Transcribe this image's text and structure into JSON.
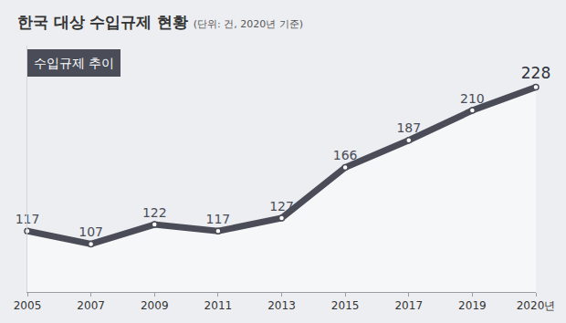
{
  "chart_data": {
    "type": "line",
    "title": "한국 대상 수입규제 현황",
    "subtitle": "(단위: 건, 2020년 기준)",
    "annotations": [
      "수입규제 추이"
    ],
    "categories": [
      "2005",
      "2007",
      "2009",
      "2011",
      "2013",
      "2015",
      "2017",
      "2019",
      "2020년"
    ],
    "values": [
      117,
      107,
      122,
      117,
      127,
      166,
      187,
      210,
      228
    ],
    "color": "#4a4d58",
    "marker": "circle",
    "ylim": [
      70,
      260
    ],
    "yticks": [],
    "tick_labels": "x",
    "data_labels": true,
    "grid": false
  }
}
